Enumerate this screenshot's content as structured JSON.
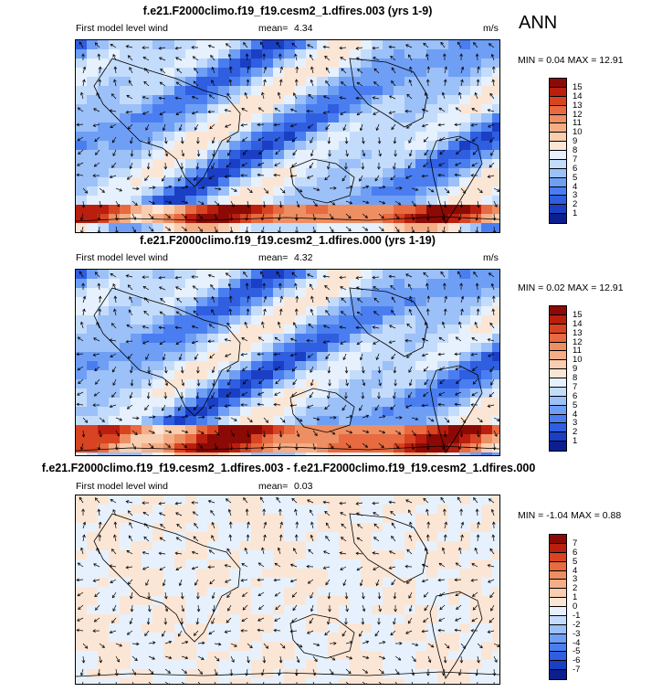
{
  "season": "ANN",
  "panels": [
    {
      "title": "f.e21.F2000climo.f19_f19.cesm2_1.dfires.003 (yrs 1-9)",
      "left_label": "First model level wind",
      "mean_label": "mean=",
      "mean_value": "4.34",
      "units": "m/s",
      "minmax": "MIN =  0.04 MAX =  12.91",
      "colorbar_labels": [
        "15",
        "14",
        "13",
        "12",
        "11",
        "10",
        "9",
        "8",
        "7",
        "6",
        "5",
        "4",
        "3",
        "2",
        "1"
      ],
      "colors": [
        "#0b1f8f",
        "#1a3fc4",
        "#2f5ee0",
        "#4a7ef0",
        "#6f9ff5",
        "#9cc0f8",
        "#c4dcfb",
        "#e6f1fd",
        "#fbe6d6",
        "#f8cdb0",
        "#f4ae87",
        "#ee8e63",
        "#e76a40",
        "#d84422",
        "#b91e0f",
        "#8c0a05"
      ]
    },
    {
      "title": "f.e21.F2000climo.f19_f19.cesm2_1.dfires.000 (yrs 1-19)",
      "left_label": "First model level wind",
      "mean_label": "mean=",
      "mean_value": "4.32",
      "units": "m/s",
      "minmax": "MIN =  0.02 MAX =  12.91",
      "colorbar_labels": [
        "15",
        "14",
        "13",
        "12",
        "11",
        "10",
        "9",
        "8",
        "7",
        "6",
        "5",
        "4",
        "3",
        "2",
        "1"
      ],
      "colors": [
        "#0b1f8f",
        "#1a3fc4",
        "#2f5ee0",
        "#4a7ef0",
        "#6f9ff5",
        "#9cc0f8",
        "#c4dcfb",
        "#e6f1fd",
        "#fbe6d6",
        "#f8cdb0",
        "#f4ae87",
        "#ee8e63",
        "#e76a40",
        "#d84422",
        "#b91e0f",
        "#8c0a05"
      ]
    },
    {
      "title": "f.e21.F2000climo.f19_f19.cesm2_1.dfires.003 - f.e21.F2000climo.f19_f19.cesm2_1.dfires.000",
      "left_label": "First model level wind",
      "mean_label": "mean=",
      "mean_value": "0.03",
      "units": "",
      "minmax": "MIN = -1.04 MAX =  0.88",
      "colorbar_labels": [
        "7",
        "6",
        "5",
        "4",
        "3",
        "2",
        "1",
        "0",
        "-1",
        "-2",
        "-3",
        "-4",
        "-5",
        "-6",
        "-7"
      ],
      "colors": [
        "#0b1f8f",
        "#1a3fc4",
        "#2f5ee0",
        "#4a7ef0",
        "#6f9ff5",
        "#9cc0f8",
        "#c4dcfb",
        "#e6f1fd",
        "#fbe6d6",
        "#f8cdb0",
        "#f4ae87",
        "#ee8e63",
        "#e76a40",
        "#d84422",
        "#b91e0f",
        "#8c0a05"
      ]
    }
  ]
}
